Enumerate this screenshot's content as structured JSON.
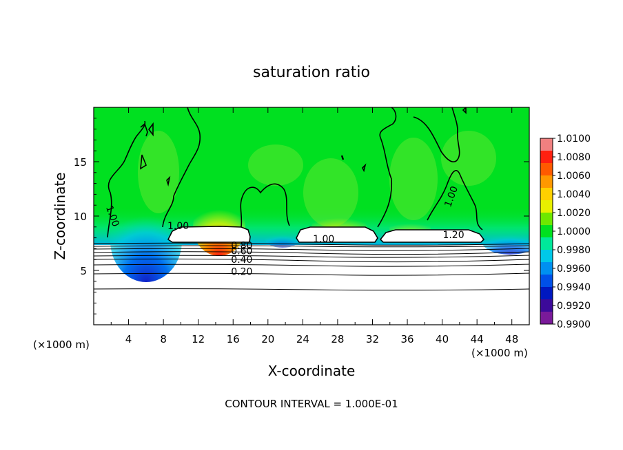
{
  "chart_data": {
    "type": "heatmap",
    "title": "saturation ratio",
    "xlabel": "X-coordinate",
    "ylabel": "Z-coordinate",
    "x_unit_left": "(×1000 m)",
    "x_unit_right": "(×1000 m)",
    "xlim": [
      0,
      50
    ],
    "ylim": [
      0,
      20
    ],
    "x_ticks": [
      4,
      8,
      12,
      16,
      20,
      24,
      28,
      32,
      36,
      40,
      44,
      48
    ],
    "y_ticks": [
      5,
      10,
      15
    ],
    "colorbar": {
      "min": 0.99,
      "max": 1.01,
      "labels": [
        "1.0100",
        "1.0080",
        "1.0060",
        "1.0040",
        "1.0020",
        "1.0000",
        "0.9980",
        "0.9960",
        "0.9940",
        "0.9920",
        "0.9900"
      ],
      "colors": [
        "#f08080",
        "#ff2010",
        "#ff5a00",
        "#ff9800",
        "#ffd000",
        "#e8f000",
        "#6ee800",
        "#00e020",
        "#00e89a",
        "#00c8e8",
        "#0090f0",
        "#0050e8",
        "#0018c0",
        "#3c0a9a",
        "#7a1a9a"
      ]
    },
    "contour_labels": [
      {
        "text": "1.00",
        "x": 2.2,
        "z": 10.0
      },
      {
        "text": "1.00",
        "x": 9.7,
        "z": 9.1
      },
      {
        "text": "1.00",
        "x": 26.4,
        "z": 7.9
      },
      {
        "text": "1.00",
        "x": 41.0,
        "z": 11.8
      },
      {
        "text": "1.20",
        "x": 41.3,
        "z": 8.3
      },
      {
        "text": "0.80",
        "x": 17.0,
        "z": 7.3
      },
      {
        "text": "0.60",
        "x": 17.0,
        "z": 6.8
      },
      {
        "text": "0.40",
        "x": 17.0,
        "z": 6.0
      },
      {
        "text": "0.20",
        "x": 17.0,
        "z": 4.9
      }
    ],
    "subsaturated_contours_z": [
      7.5,
      7.3,
      7.0,
      6.7,
      6.4,
      6.1,
      5.6,
      4.9,
      4.0,
      3.3
    ],
    "footer": "CONTOUR INTERVAL = 1.000E-01"
  }
}
